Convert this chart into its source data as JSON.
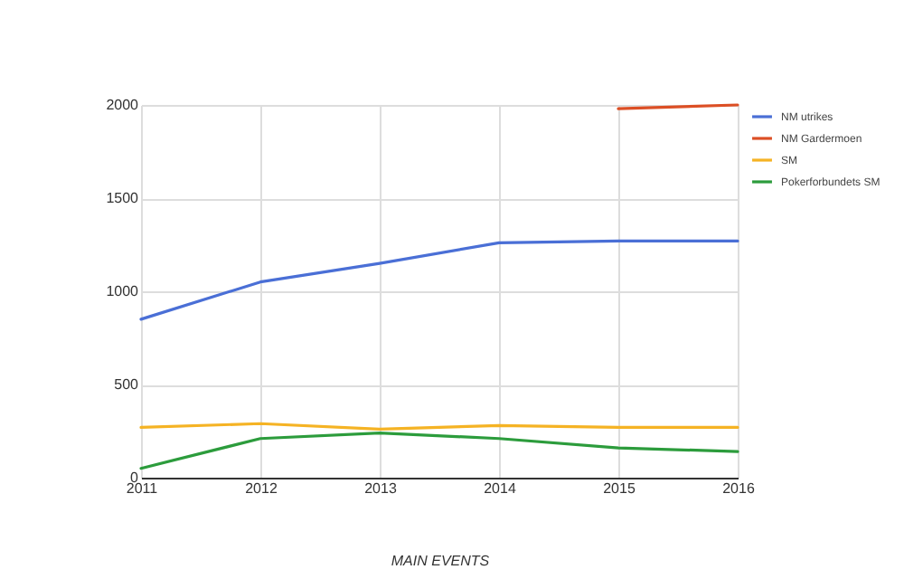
{
  "chart_data": {
    "type": "line",
    "xlabel": "MAIN EVENTS",
    "x": [
      2011,
      2012,
      2013,
      2014,
      2015,
      2016
    ],
    "series": [
      {
        "name": "NM utrikes",
        "color": "#4a6fd6",
        "values": [
          850,
          1050,
          1150,
          1260,
          1270,
          1270
        ]
      },
      {
        "name": "NM Gardermoen",
        "color": "#dc4f25",
        "values": [
          null,
          null,
          null,
          null,
          1980,
          2000
        ]
      },
      {
        "name": "SM",
        "color": "#f5b324",
        "values": [
          270,
          290,
          260,
          280,
          270,
          270
        ]
      },
      {
        "name": "Pokerforbundets SM",
        "color": "#2c9c3c",
        "values": [
          50,
          210,
          240,
          210,
          160,
          140
        ]
      }
    ],
    "xlim": [
      2011,
      2016
    ],
    "xticks": [
      2011,
      2012,
      2013,
      2014,
      2015,
      2016
    ],
    "ylim": [
      0,
      2000
    ],
    "yticks": [
      0,
      500,
      1000,
      1500,
      2000
    ],
    "grid": true,
    "legend": "top right",
    "marker": "none",
    "line_style": "solid"
  }
}
